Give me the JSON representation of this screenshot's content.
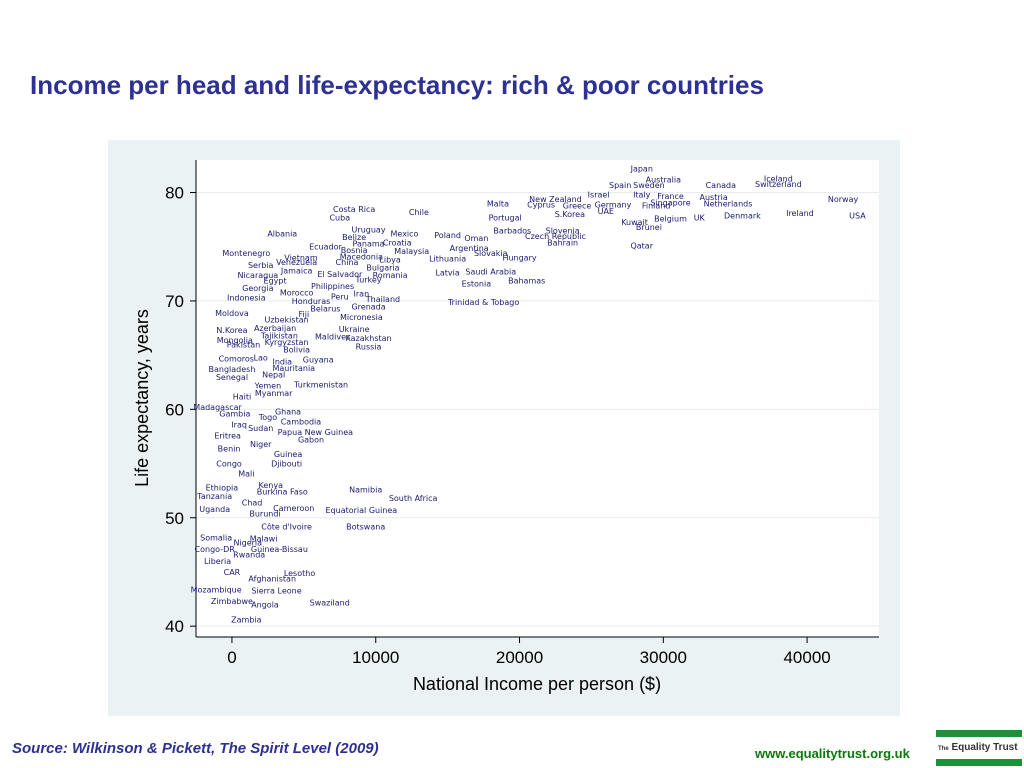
{
  "slide": {
    "title": "Income per head and life-expectancy: rich & poor countries",
    "source": "Source: Wilkinson & Pickett, The Spirit Level (2009)",
    "website": "www.equalitytrust.org.uk",
    "logo_text_small": "The",
    "logo_text_main": "Equality Trust"
  },
  "colors": {
    "title": "#2e3192",
    "panel_background": "#eaf2f3",
    "plot_background": "#ffffff",
    "label": "#1a1a6e",
    "website": "#0a7a0a",
    "logo_green": "#1f8f3a"
  },
  "chart_data": {
    "type": "scatter",
    "title": "",
    "xlabel": "National Income per person ($)",
    "ylabel": "Life expectancy, years",
    "xlim": [
      -2500,
      45000
    ],
    "ylim": [
      39,
      83
    ],
    "xticks": [
      0,
      10000,
      20000,
      30000,
      40000
    ],
    "yticks": [
      40,
      50,
      60,
      70,
      80
    ],
    "grid": true,
    "marker": "country name labels",
    "points": [
      {
        "label": "Japan",
        "x": 28500,
        "y": 82.2
      },
      {
        "label": "Australia",
        "x": 30000,
        "y": 81.2
      },
      {
        "label": "Iceland",
        "x": 38000,
        "y": 81.3
      },
      {
        "label": "Spain",
        "x": 27000,
        "y": 80.7
      },
      {
        "label": "Sweden",
        "x": 29000,
        "y": 80.7
      },
      {
        "label": "Canada",
        "x": 34000,
        "y": 80.7
      },
      {
        "label": "Switzerland",
        "x": 38000,
        "y": 80.8
      },
      {
        "label": "Israel",
        "x": 25500,
        "y": 79.8
      },
      {
        "label": "Italy",
        "x": 28500,
        "y": 79.8
      },
      {
        "label": "France",
        "x": 30500,
        "y": 79.7
      },
      {
        "label": "Austria",
        "x": 33500,
        "y": 79.6
      },
      {
        "label": "Norway",
        "x": 42500,
        "y": 79.4
      },
      {
        "label": "New Zealand",
        "x": 22500,
        "y": 79.4
      },
      {
        "label": "Singapore",
        "x": 30500,
        "y": 79.1
      },
      {
        "label": "Netherlands",
        "x": 34500,
        "y": 79.0
      },
      {
        "label": "Germany",
        "x": 26500,
        "y": 78.9
      },
      {
        "label": "Malta",
        "x": 18500,
        "y": 79.0
      },
      {
        "label": "Cyprus",
        "x": 21500,
        "y": 78.9
      },
      {
        "label": "Greece",
        "x": 24000,
        "y": 78.8
      },
      {
        "label": "Finland",
        "x": 29500,
        "y": 78.8
      },
      {
        "label": "Costa Rica",
        "x": 8500,
        "y": 78.5
      },
      {
        "label": "Chile",
        "x": 13000,
        "y": 78.2
      },
      {
        "label": "UAE",
        "x": 26000,
        "y": 78.3
      },
      {
        "label": "S.Korea",
        "x": 23500,
        "y": 78.0
      },
      {
        "label": "Denmark",
        "x": 35500,
        "y": 77.9
      },
      {
        "label": "Ireland",
        "x": 39500,
        "y": 78.1
      },
      {
        "label": "USA",
        "x": 43500,
        "y": 77.9
      },
      {
        "label": "Cuba",
        "x": 7500,
        "y": 77.7
      },
      {
        "label": "Portugal",
        "x": 19000,
        "y": 77.7
      },
      {
        "label": "Belgium",
        "x": 30500,
        "y": 77.6
      },
      {
        "label": "UK",
        "x": 32500,
        "y": 77.7
      },
      {
        "label": "Kuwait",
        "x": 28000,
        "y": 77.3
      },
      {
        "label": "Uruguay",
        "x": 9500,
        "y": 76.6
      },
      {
        "label": "Brunei",
        "x": 29000,
        "y": 76.8
      },
      {
        "label": "Barbados",
        "x": 19500,
        "y": 76.5
      },
      {
        "label": "Slovenia",
        "x": 23000,
        "y": 76.5
      },
      {
        "label": "Albania",
        "x": 3500,
        "y": 76.2
      },
      {
        "label": "Mexico",
        "x": 12000,
        "y": 76.2
      },
      {
        "label": "Poland",
        "x": 15000,
        "y": 76.1
      },
      {
        "label": "Czech Republic",
        "x": 22500,
        "y": 76.0
      },
      {
        "label": "Belize",
        "x": 8500,
        "y": 75.9
      },
      {
        "label": "Oman",
        "x": 17000,
        "y": 75.8
      },
      {
        "label": "Croatia",
        "x": 11500,
        "y": 75.4
      },
      {
        "label": "Panama",
        "x": 9500,
        "y": 75.3
      },
      {
        "label": "Bahrain",
        "x": 23000,
        "y": 75.4
      },
      {
        "label": "Qatar",
        "x": 28500,
        "y": 75.1
      },
      {
        "label": "Ecuador",
        "x": 6500,
        "y": 75.0
      },
      {
        "label": "Bosnia",
        "x": 8500,
        "y": 74.7
      },
      {
        "label": "Argentina",
        "x": 16500,
        "y": 74.9
      },
      {
        "label": "Malaysia",
        "x": 12500,
        "y": 74.6
      },
      {
        "label": "Slovakia",
        "x": 18000,
        "y": 74.4
      },
      {
        "label": "Montenegro",
        "x": 1000,
        "y": 74.4
      },
      {
        "label": "Vietnam",
        "x": 4800,
        "y": 74.0
      },
      {
        "label": "Macedonia",
        "x": 9000,
        "y": 74.1
      },
      {
        "label": "Hungary",
        "x": 20000,
        "y": 74.0
      },
      {
        "label": "Venezuela",
        "x": 4500,
        "y": 73.6
      },
      {
        "label": "China",
        "x": 8000,
        "y": 73.6
      },
      {
        "label": "Libya",
        "x": 11000,
        "y": 73.8
      },
      {
        "label": "Lithuania",
        "x": 15000,
        "y": 73.9
      },
      {
        "label": "Serbia",
        "x": 2000,
        "y": 73.3
      },
      {
        "label": "Bulgaria",
        "x": 10500,
        "y": 73.1
      },
      {
        "label": "Jamaica",
        "x": 4500,
        "y": 72.8
      },
      {
        "label": "Nicaragua",
        "x": 1800,
        "y": 72.4
      },
      {
        "label": "El Salvador",
        "x": 7500,
        "y": 72.5
      },
      {
        "label": "Romania",
        "x": 11000,
        "y": 72.4
      },
      {
        "label": "Latvia",
        "x": 15000,
        "y": 72.6
      },
      {
        "label": "Saudi Arabia",
        "x": 18000,
        "y": 72.7
      },
      {
        "label": "Egypt",
        "x": 3000,
        "y": 71.9
      },
      {
        "label": "Turkey",
        "x": 9500,
        "y": 72.0
      },
      {
        "label": "Estonia",
        "x": 17000,
        "y": 71.6
      },
      {
        "label": "Bahamas",
        "x": 20500,
        "y": 71.9
      },
      {
        "label": "Georgia",
        "x": 1800,
        "y": 71.2
      },
      {
        "label": "Philippines",
        "x": 7000,
        "y": 71.4
      },
      {
        "label": "Morocco",
        "x": 4500,
        "y": 70.8
      },
      {
        "label": "Iran",
        "x": 9000,
        "y": 70.7
      },
      {
        "label": "Indonesia",
        "x": 1000,
        "y": 70.3
      },
      {
        "label": "Peru",
        "x": 7500,
        "y": 70.4
      },
      {
        "label": "Honduras",
        "x": 5500,
        "y": 70.0
      },
      {
        "label": "Thailand",
        "x": 10500,
        "y": 70.2
      },
      {
        "label": "Trinidad & Tobago",
        "x": 17500,
        "y": 69.9
      },
      {
        "label": "Belarus",
        "x": 6500,
        "y": 69.3
      },
      {
        "label": "Grenada",
        "x": 9500,
        "y": 69.5
      },
      {
        "label": "Moldova",
        "x": 0,
        "y": 68.9
      },
      {
        "label": "Fiji",
        "x": 5000,
        "y": 68.8
      },
      {
        "label": "Micronesia",
        "x": 9000,
        "y": 68.5
      },
      {
        "label": "Uzbekistan",
        "x": 3800,
        "y": 68.3
      },
      {
        "label": "Azerbaijan",
        "x": 3000,
        "y": 67.5
      },
      {
        "label": "Ukraine",
        "x": 8500,
        "y": 67.4
      },
      {
        "label": "N.Korea",
        "x": 0,
        "y": 67.3
      },
      {
        "label": "Tajikistan",
        "x": 3300,
        "y": 66.8
      },
      {
        "label": "Maldives",
        "x": 7000,
        "y": 66.7
      },
      {
        "label": "Kazakhstan",
        "x": 9500,
        "y": 66.6
      },
      {
        "label": "Mongolia",
        "x": 200,
        "y": 66.4
      },
      {
        "label": "Kyrgyzstan",
        "x": 3800,
        "y": 66.2
      },
      {
        "label": "Pakistan",
        "x": 800,
        "y": 66.0
      },
      {
        "label": "Russia",
        "x": 9500,
        "y": 65.8
      },
      {
        "label": "Bolivia",
        "x": 4500,
        "y": 65.5
      },
      {
        "label": "Comoros",
        "x": 300,
        "y": 64.7
      },
      {
        "label": "Lao",
        "x": 2000,
        "y": 64.8
      },
      {
        "label": "Guyana",
        "x": 6000,
        "y": 64.6
      },
      {
        "label": "India",
        "x": 3500,
        "y": 64.4
      },
      {
        "label": "Bangladesh",
        "x": 0,
        "y": 63.7
      },
      {
        "label": "Mauritania",
        "x": 4300,
        "y": 63.8
      },
      {
        "label": "Nepal",
        "x": 2900,
        "y": 63.2
      },
      {
        "label": "Senegal",
        "x": 0,
        "y": 63.0
      },
      {
        "label": "Yemen",
        "x": 2500,
        "y": 62.2
      },
      {
        "label": "Turkmenistan",
        "x": 6200,
        "y": 62.3
      },
      {
        "label": "Myanmar",
        "x": 2900,
        "y": 61.5
      },
      {
        "label": "Haiti",
        "x": 700,
        "y": 61.2
      },
      {
        "label": "Madagascar",
        "x": -1000,
        "y": 60.2
      },
      {
        "label": "Ghana",
        "x": 3900,
        "y": 59.8
      },
      {
        "label": "Gambia",
        "x": 200,
        "y": 59.6
      },
      {
        "label": "Togo",
        "x": 2500,
        "y": 59.3
      },
      {
        "label": "Cambodia",
        "x": 4800,
        "y": 58.9
      },
      {
        "label": "Iraq",
        "x": 500,
        "y": 58.6
      },
      {
        "label": "Sudan",
        "x": 2000,
        "y": 58.3
      },
      {
        "label": "Papua New Guinea",
        "x": 5800,
        "y": 57.9
      },
      {
        "label": "Eritrea",
        "x": -300,
        "y": 57.6
      },
      {
        "label": "Gabon",
        "x": 5500,
        "y": 57.2
      },
      {
        "label": "Niger",
        "x": 2000,
        "y": 56.8
      },
      {
        "label": "Benin",
        "x": -200,
        "y": 56.4
      },
      {
        "label": "Guinea",
        "x": 3900,
        "y": 55.9
      },
      {
        "label": "Congo",
        "x": -200,
        "y": 55.0
      },
      {
        "label": "Djibouti",
        "x": 3800,
        "y": 55.0
      },
      {
        "label": "Mali",
        "x": 1000,
        "y": 54.1
      },
      {
        "label": "Kenya",
        "x": 2700,
        "y": 53.0
      },
      {
        "label": "Ethiopia",
        "x": -700,
        "y": 52.8
      },
      {
        "label": "Namibia",
        "x": 9300,
        "y": 52.6
      },
      {
        "label": "Burkina Faso",
        "x": 3500,
        "y": 52.4
      },
      {
        "label": "Tanzania",
        "x": -1200,
        "y": 52.0
      },
      {
        "label": "South Africa",
        "x": 12600,
        "y": 51.8
      },
      {
        "label": "Chad",
        "x": 1400,
        "y": 51.4
      },
      {
        "label": "Uganda",
        "x": -1200,
        "y": 50.8
      },
      {
        "label": "Cameroon",
        "x": 4300,
        "y": 50.9
      },
      {
        "label": "Equatorial Guinea",
        "x": 9000,
        "y": 50.7
      },
      {
        "label": "Burundi",
        "x": 2300,
        "y": 50.4
      },
      {
        "label": "Côte d'Ivoire",
        "x": 3800,
        "y": 49.2
      },
      {
        "label": "Botswana",
        "x": 9300,
        "y": 49.2
      },
      {
        "label": "Somalia",
        "x": -1100,
        "y": 48.2
      },
      {
        "label": "Malawi",
        "x": 2200,
        "y": 48.1
      },
      {
        "label": "Nigeria",
        "x": 1100,
        "y": 47.7
      },
      {
        "label": "Congo-DR",
        "x": -1200,
        "y": 47.1
      },
      {
        "label": "Guinea-Bissau",
        "x": 3300,
        "y": 47.1
      },
      {
        "label": "Rwanda",
        "x": 1200,
        "y": 46.6
      },
      {
        "label": "Liberia",
        "x": -1000,
        "y": 46.0
      },
      {
        "label": "CAR",
        "x": 0,
        "y": 45.0
      },
      {
        "label": "Lesotho",
        "x": 4700,
        "y": 44.9
      },
      {
        "label": "Afghanistan",
        "x": 2800,
        "y": 44.4
      },
      {
        "label": "Mozambique",
        "x": -1100,
        "y": 43.4
      },
      {
        "label": "Sierra Leone",
        "x": 3100,
        "y": 43.3
      },
      {
        "label": "Zimbabwe",
        "x": 0,
        "y": 42.3
      },
      {
        "label": "Swaziland",
        "x": 6800,
        "y": 42.2
      },
      {
        "label": "Angola",
        "x": 2300,
        "y": 42.0
      },
      {
        "label": "Zambia",
        "x": 1000,
        "y": 40.6
      }
    ]
  }
}
